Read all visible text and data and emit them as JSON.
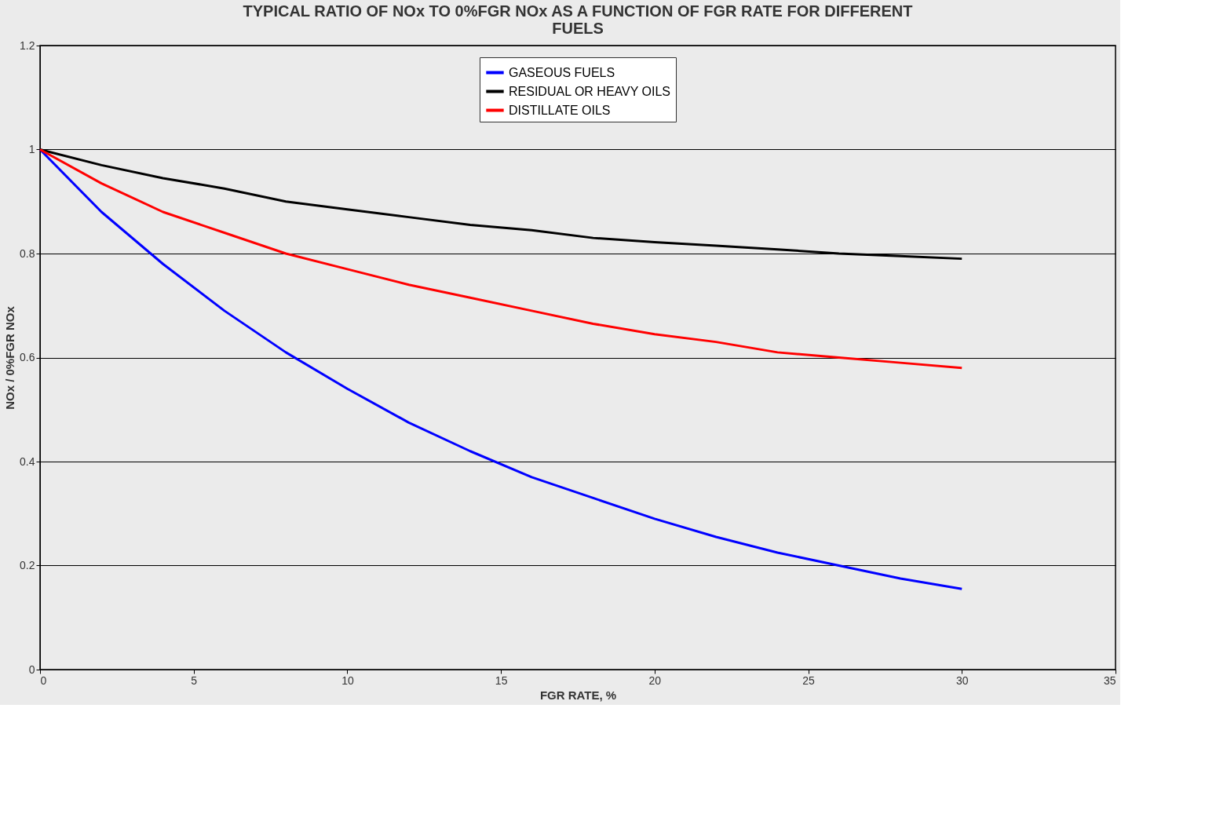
{
  "chart_data": {
    "type": "line",
    "title": [
      "TYPICAL RATIO OF NOx TO 0%FGR NOx AS A FUNCTION OF FGR RATE FOR DIFFERENT",
      "FUELS"
    ],
    "xlabel": "FGR RATE, %",
    "ylabel": "NOx / 0%FGR NOx",
    "x": [
      0,
      2,
      4,
      6,
      8,
      10,
      12,
      14,
      16,
      18,
      20,
      22,
      24,
      26,
      28,
      30
    ],
    "series": [
      {
        "name": "GASEOUS FUELS",
        "color": "#0000ff",
        "values": [
          1,
          0.88,
          0.78,
          0.69,
          0.61,
          0.54,
          0.475,
          0.42,
          0.37,
          0.33,
          0.29,
          0.255,
          0.225,
          0.2,
          0.175,
          0.155
        ]
      },
      {
        "name": "RESIDUAL OR HEAVY OILS",
        "color": "#000000",
        "values": [
          1,
          0.97,
          0.945,
          0.925,
          0.9,
          0.885,
          0.87,
          0.855,
          0.845,
          0.83,
          0.822,
          0.815,
          0.808,
          0.8,
          0.795,
          0.79
        ]
      },
      {
        "name": "DISTILLATE OILS",
        "color": "#ff0000",
        "values": [
          1,
          0.935,
          0.88,
          0.84,
          0.8,
          0.77,
          0.74,
          0.715,
          0.69,
          0.665,
          0.645,
          0.63,
          0.61,
          0.6,
          0.59,
          0.58
        ]
      }
    ],
    "xlim": [
      0,
      35
    ],
    "xticks": [
      0,
      5,
      10,
      15,
      20,
      25,
      30,
      35
    ],
    "ylim": [
      0,
      1.2
    ],
    "yticks": [
      0,
      0.2,
      0.4,
      0.6,
      0.8,
      1,
      1.2
    ],
    "grid": "y",
    "legend": "top",
    "marker": "none",
    "line_style": "solid"
  }
}
